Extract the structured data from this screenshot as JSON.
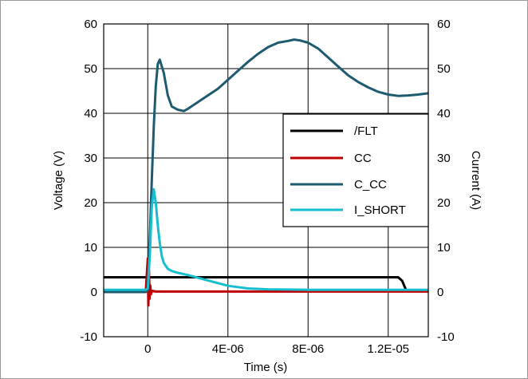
{
  "chart_data": {
    "type": "line",
    "title": "",
    "xlabel": "Time (s)",
    "ylabel": "Voltage (V)",
    "y2label": "Current (A)",
    "xlim": [
      -2.2e-06,
      1.4e-05
    ],
    "ylim": [
      -10,
      60
    ],
    "y2lim": [
      -10,
      60
    ],
    "grid": true,
    "legend_position": "center-right",
    "x_ticks": [
      {
        "value": 0,
        "label": "0"
      },
      {
        "value": 4e-06,
        "label": "4E-06"
      },
      {
        "value": 8e-06,
        "label": "8E-06"
      },
      {
        "value": 1.2e-05,
        "label": "1.2E-05"
      }
    ],
    "y_ticks": [
      {
        "value": -10,
        "label": "-10"
      },
      {
        "value": 0,
        "label": "0"
      },
      {
        "value": 10,
        "label": "10"
      },
      {
        "value": 20,
        "label": "20"
      },
      {
        "value": 30,
        "label": "30"
      },
      {
        "value": 40,
        "label": "40"
      },
      {
        "value": 50,
        "label": "50"
      },
      {
        "value": 60,
        "label": "60"
      }
    ],
    "y2_ticks": [
      {
        "value": -10,
        "label": "-10"
      },
      {
        "value": 0,
        "label": "0"
      },
      {
        "value": 10,
        "label": "10"
      },
      {
        "value": 20,
        "label": "20"
      },
      {
        "value": 30,
        "label": "30"
      },
      {
        "value": 40,
        "label": "40"
      },
      {
        "value": 50,
        "label": "50"
      },
      {
        "value": 60,
        "label": "60"
      }
    ],
    "series": [
      {
        "name": "/FLT",
        "color": "#000000",
        "x": [
          -2.2e-06,
          4e-06,
          8e-06,
          1.25e-05,
          1.27e-05,
          1.29e-05,
          1.4e-05
        ],
        "y": [
          3.3,
          3.3,
          3.3,
          3.3,
          2.5,
          0.3,
          0.3
        ]
      },
      {
        "name": "CC",
        "color": "#c00000",
        "x": [
          -2.2e-06,
          -1e-07,
          0,
          3e-08,
          6e-08,
          9e-08,
          1.2e-07,
          1.6e-07,
          2e-07,
          4e-07,
          1.4e-05
        ],
        "y": [
          0.1,
          0.1,
          7.5,
          -3,
          5,
          -1.5,
          1.5,
          -0.5,
          0.3,
          0.1,
          0.1
        ]
      },
      {
        "name": "C_CC",
        "color": "#1e5b6e",
        "x": [
          -2.2e-06,
          -1e-07,
          0,
          1e-07,
          2e-07,
          3e-07,
          4e-07,
          5e-07,
          6e-07,
          8e-07,
          1e-06,
          1.2e-06,
          1.5e-06,
          1.8e-06,
          2e-06,
          2.5e-06,
          3e-06,
          3.5e-06,
          4e-06,
          4.5e-06,
          5e-06,
          5.5e-06,
          6e-06,
          6.5e-06,
          7e-06,
          7.3e-06,
          7.6e-06,
          8e-06,
          8.5e-06,
          9e-06,
          9.5e-06,
          1e-05,
          1.05e-05,
          1.1e-05,
          1.15e-05,
          1.2e-05,
          1.25e-05,
          1.3e-05,
          1.35e-05,
          1.4e-05
        ],
        "y": [
          0,
          0,
          0.5,
          12,
          25,
          37,
          46,
          51,
          52,
          49,
          44,
          41.5,
          40.8,
          40.5,
          41,
          42.5,
          44,
          45.5,
          47.5,
          49.5,
          51.5,
          53.3,
          54.8,
          55.8,
          56.2,
          56.5,
          56.3,
          55.8,
          54.5,
          52.5,
          50.5,
          48.5,
          47,
          45.8,
          44.8,
          44.2,
          43.9,
          44,
          44.2,
          44.5
        ]
      },
      {
        "name": "I_SHORT",
        "color": "#17becf",
        "x": [
          -2.2e-06,
          -1e-07,
          0,
          1e-07,
          2e-07,
          3e-07,
          4e-07,
          5e-07,
          6e-07,
          7e-07,
          8e-07,
          1e-06,
          1.2e-06,
          1.5e-06,
          2e-06,
          2.5e-06,
          3e-06,
          3.5e-06,
          4e-06,
          5e-06,
          6e-06,
          8e-06,
          1e-05,
          1.2e-05,
          1.4e-05
        ],
        "y": [
          0.5,
          0.5,
          0.8,
          8,
          19,
          23,
          20,
          15,
          11,
          8,
          6.5,
          5.2,
          4.7,
          4.3,
          3.8,
          3.2,
          2.6,
          2,
          1.4,
          0.8,
          0.6,
          0.5,
          0.5,
          0.5,
          0.5
        ]
      }
    ]
  }
}
